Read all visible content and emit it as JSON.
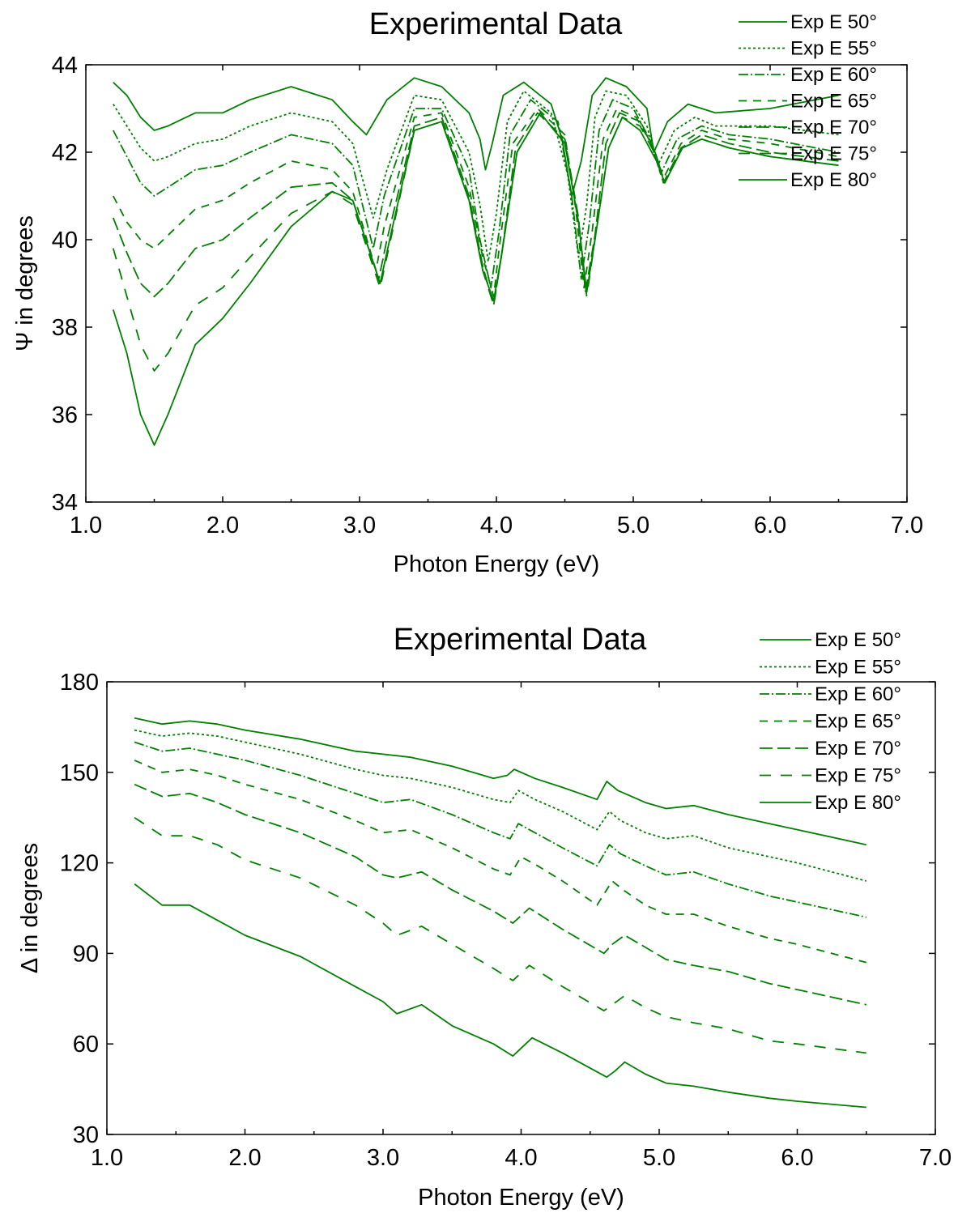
{
  "colors": {
    "series": "#008000",
    "axis": "#000000",
    "background": "#ffffff"
  },
  "chart_data": [
    {
      "type": "line",
      "title": "Experimental Data",
      "xlabel": "Photon Energy (eV)",
      "ylabel": "Ψ in degrees",
      "xlim": [
        1.0,
        7.0
      ],
      "ylim": [
        34,
        44
      ],
      "xticks": [
        "1.0",
        "2.0",
        "3.0",
        "4.0",
        "5.0",
        "6.0",
        "7.0"
      ],
      "yticks": [
        "34",
        "36",
        "38",
        "40",
        "42",
        "44"
      ],
      "grid": false,
      "legend_position": "top-right",
      "series": [
        {
          "name": "Exp E 50°",
          "dash": "solid",
          "x": [
            1.2,
            1.3,
            1.4,
            1.5,
            1.6,
            1.8,
            2.0,
            2.2,
            2.5,
            2.8,
            2.95,
            3.05,
            3.2,
            3.4,
            3.6,
            3.8,
            3.88,
            3.92,
            3.97,
            4.05,
            4.2,
            4.4,
            4.48,
            4.55,
            4.62,
            4.7,
            4.8,
            4.95,
            5.1,
            5.15,
            5.25,
            5.4,
            5.6,
            6.0,
            6.5
          ],
          "y": [
            43.6,
            43.3,
            42.8,
            42.5,
            42.6,
            42.9,
            42.9,
            43.2,
            43.5,
            43.2,
            42.7,
            42.4,
            43.2,
            43.7,
            43.5,
            42.9,
            42.3,
            41.6,
            42.2,
            43.3,
            43.6,
            43.1,
            42.3,
            41.0,
            41.8,
            43.3,
            43.7,
            43.5,
            43.0,
            42.0,
            42.7,
            43.1,
            42.9,
            43.0,
            43.3
          ]
        },
        {
          "name": "Exp E 55°",
          "dash": "3 3",
          "x": [
            1.2,
            1.3,
            1.4,
            1.5,
            1.6,
            1.8,
            2.0,
            2.2,
            2.5,
            2.8,
            2.95,
            3.1,
            3.2,
            3.4,
            3.6,
            3.8,
            3.88,
            3.94,
            4.0,
            4.08,
            4.2,
            4.4,
            4.52,
            4.6,
            4.66,
            4.72,
            4.8,
            4.95,
            5.1,
            5.18,
            5.3,
            5.45,
            5.6,
            6.0,
            6.5
          ],
          "y": [
            43.1,
            42.6,
            42.1,
            41.8,
            41.9,
            42.2,
            42.3,
            42.6,
            42.9,
            42.7,
            42.2,
            40.5,
            41.6,
            43.3,
            43.2,
            42.0,
            40.8,
            39.5,
            40.6,
            42.7,
            43.4,
            42.9,
            41.5,
            39.6,
            40.8,
            42.8,
            43.4,
            43.3,
            42.6,
            41.7,
            42.5,
            42.8,
            42.6,
            42.6,
            42.4
          ]
        },
        {
          "name": "Exp E 60°",
          "dash": "12 3 2 3",
          "x": [
            1.2,
            1.3,
            1.4,
            1.5,
            1.6,
            1.8,
            2.0,
            2.2,
            2.5,
            2.8,
            2.95,
            3.1,
            3.18,
            3.4,
            3.6,
            3.8,
            3.88,
            3.96,
            4.02,
            4.1,
            4.25,
            4.45,
            4.55,
            4.62,
            4.68,
            4.75,
            4.85,
            5.0,
            5.12,
            5.2,
            5.32,
            5.5,
            5.7,
            6.0,
            6.5
          ],
          "y": [
            42.5,
            41.9,
            41.3,
            41.0,
            41.2,
            41.6,
            41.7,
            42.0,
            42.4,
            42.2,
            41.7,
            39.8,
            41.0,
            43.0,
            43.0,
            41.6,
            40.0,
            38.9,
            40.2,
            42.4,
            43.2,
            42.7,
            41.0,
            39.1,
            40.4,
            42.5,
            43.2,
            43.0,
            42.3,
            41.5,
            42.3,
            42.6,
            42.4,
            42.3,
            42.0
          ]
        },
        {
          "name": "Exp E 65°",
          "dash": "10 8",
          "x": [
            1.2,
            1.3,
            1.4,
            1.5,
            1.6,
            1.8,
            2.0,
            2.2,
            2.5,
            2.8,
            2.95,
            3.12,
            3.18,
            3.4,
            3.6,
            3.8,
            3.9,
            3.98,
            4.02,
            4.12,
            4.3,
            4.5,
            4.58,
            4.64,
            4.7,
            4.78,
            4.88,
            5.02,
            5.15,
            5.22,
            5.35,
            5.5,
            5.7,
            6.0,
            6.5
          ],
          "y": [
            41.0,
            40.4,
            40.0,
            39.8,
            40.1,
            40.7,
            40.9,
            41.3,
            41.8,
            41.6,
            41.1,
            39.3,
            40.3,
            42.8,
            42.9,
            41.2,
            39.6,
            38.7,
            39.8,
            42.2,
            43.0,
            42.4,
            40.7,
            38.9,
            40.2,
            42.3,
            43.0,
            42.8,
            42.1,
            41.4,
            42.2,
            42.5,
            42.3,
            42.2,
            41.9
          ]
        },
        {
          "name": "Exp E 70°",
          "dash": "16 6",
          "x": [
            1.2,
            1.3,
            1.4,
            1.5,
            1.6,
            1.8,
            2.0,
            2.2,
            2.5,
            2.8,
            2.95,
            3.14,
            3.2,
            3.4,
            3.6,
            3.8,
            3.9,
            3.98,
            4.04,
            4.14,
            4.3,
            4.5,
            4.6,
            4.65,
            4.72,
            4.8,
            4.9,
            5.05,
            5.16,
            5.22,
            5.35,
            5.5,
            5.7,
            6.0,
            6.5
          ],
          "y": [
            40.5,
            39.7,
            39.0,
            38.7,
            39.0,
            39.8,
            40.0,
            40.5,
            41.2,
            41.3,
            40.9,
            39.1,
            40.0,
            42.6,
            42.8,
            41.0,
            39.4,
            38.5,
            39.7,
            42.1,
            42.9,
            42.3,
            40.5,
            38.8,
            40.1,
            42.2,
            42.9,
            42.7,
            42.0,
            41.3,
            42.1,
            42.4,
            42.2,
            42.0,
            41.8
          ]
        },
        {
          "name": "Exp E 75°",
          "dash": "14 12",
          "x": [
            1.2,
            1.3,
            1.4,
            1.5,
            1.6,
            1.8,
            2.0,
            2.2,
            2.5,
            2.8,
            2.95,
            3.15,
            3.22,
            3.4,
            3.6,
            3.8,
            3.9,
            3.98,
            4.04,
            4.15,
            4.32,
            4.5,
            4.6,
            4.66,
            4.72,
            4.82,
            4.92,
            5.05,
            5.17,
            5.23,
            5.36,
            5.5,
            5.7,
            6.0,
            6.5
          ],
          "y": [
            39.8,
            38.7,
            37.6,
            37.0,
            37.4,
            38.5,
            38.9,
            39.6,
            40.6,
            41.1,
            40.8,
            38.9,
            39.9,
            42.5,
            42.7,
            40.9,
            39.3,
            38.5,
            39.7,
            42.0,
            42.9,
            42.2,
            40.4,
            38.7,
            40.0,
            42.1,
            42.8,
            42.6,
            41.9,
            41.3,
            42.1,
            42.3,
            42.1,
            41.9,
            41.7
          ]
        },
        {
          "name": "Exp E 80°",
          "dash": "solid",
          "x": [
            1.2,
            1.3,
            1.4,
            1.5,
            1.6,
            1.8,
            2.0,
            2.2,
            2.5,
            2.8,
            2.95,
            3.15,
            3.22,
            3.4,
            3.6,
            3.8,
            3.9,
            3.98,
            4.04,
            4.15,
            4.32,
            4.5,
            4.6,
            4.66,
            4.72,
            4.82,
            4.92,
            5.05,
            5.17,
            5.23,
            5.36,
            5.5,
            5.7,
            6.0,
            6.5
          ],
          "y": [
            38.4,
            37.4,
            36.0,
            35.3,
            36.0,
            37.6,
            38.2,
            39.0,
            40.3,
            41.1,
            40.9,
            39.0,
            40.0,
            42.5,
            42.7,
            40.9,
            39.3,
            38.6,
            39.7,
            42.0,
            42.9,
            42.2,
            40.4,
            38.8,
            40.0,
            42.1,
            42.8,
            42.5,
            41.8,
            41.3,
            42.1,
            42.3,
            42.1,
            41.9,
            41.7
          ]
        }
      ]
    },
    {
      "type": "line",
      "title": "Experimental Data",
      "xlabel": "Photon Energy (eV)",
      "ylabel": "Δ in degrees",
      "xlim": [
        1.0,
        7.0
      ],
      "ylim": [
        30,
        180
      ],
      "xticks": [
        "1.0",
        "2.0",
        "3.0",
        "4.0",
        "5.0",
        "6.0",
        "7.0"
      ],
      "yticks": [
        "30",
        "60",
        "90",
        "120",
        "150",
        "180"
      ],
      "grid": false,
      "legend_position": "top-right",
      "series": [
        {
          "name": "Exp E 50°",
          "dash": "solid",
          "x": [
            1.2,
            1.4,
            1.6,
            1.8,
            2.0,
            2.4,
            2.8,
            3.0,
            3.2,
            3.5,
            3.8,
            3.9,
            3.95,
            4.1,
            4.3,
            4.55,
            4.62,
            4.7,
            4.9,
            5.05,
            5.25,
            5.5,
            5.8,
            6.0,
            6.5
          ],
          "y": [
            168,
            166,
            167,
            166,
            164,
            161,
            157,
            156,
            155,
            152,
            148,
            149,
            151,
            148,
            145,
            141,
            147,
            144,
            140,
            138,
            139,
            136,
            133,
            131,
            126
          ]
        },
        {
          "name": "Exp E 55°",
          "dash": "3 3",
          "x": [
            1.2,
            1.4,
            1.6,
            1.8,
            2.0,
            2.4,
            2.8,
            3.0,
            3.2,
            3.5,
            3.8,
            3.92,
            3.98,
            4.1,
            4.3,
            4.55,
            4.64,
            4.72,
            4.9,
            5.05,
            5.25,
            5.5,
            5.8,
            6.0,
            6.5
          ],
          "y": [
            164,
            162,
            163,
            162,
            160,
            156,
            151,
            149,
            148,
            145,
            141,
            140,
            144,
            141,
            137,
            131,
            137,
            134,
            130,
            128,
            129,
            125,
            122,
            120,
            114
          ]
        },
        {
          "name": "Exp E 60°",
          "dash": "12 3 2 3",
          "x": [
            1.2,
            1.4,
            1.6,
            1.8,
            2.0,
            2.4,
            2.8,
            3.0,
            3.2,
            3.5,
            3.8,
            3.92,
            3.98,
            4.1,
            4.3,
            4.55,
            4.64,
            4.72,
            4.9,
            5.05,
            5.25,
            5.5,
            5.8,
            6.0,
            6.5
          ],
          "y": [
            160,
            157,
            158,
            156,
            154,
            149,
            143,
            140,
            141,
            136,
            130,
            128,
            133,
            130,
            125,
            119,
            126,
            123,
            119,
            116,
            117,
            113,
            109,
            107,
            102
          ]
        },
        {
          "name": "Exp E 65°",
          "dash": "10 8",
          "x": [
            1.2,
            1.4,
            1.6,
            1.8,
            2.0,
            2.4,
            2.8,
            3.0,
            3.2,
            3.5,
            3.8,
            3.92,
            4.0,
            4.12,
            4.3,
            4.55,
            4.66,
            4.74,
            4.9,
            5.05,
            5.25,
            5.5,
            5.8,
            6.0,
            6.5
          ],
          "y": [
            154,
            150,
            151,
            149,
            146,
            141,
            134,
            130,
            131,
            125,
            118,
            116,
            122,
            119,
            114,
            106,
            114,
            111,
            106,
            103,
            103,
            99,
            95,
            93,
            87
          ]
        },
        {
          "name": "Exp E 70°",
          "dash": "16 6",
          "x": [
            1.2,
            1.4,
            1.6,
            1.8,
            2.0,
            2.4,
            2.8,
            3.0,
            3.1,
            3.28,
            3.5,
            3.8,
            3.94,
            4.06,
            4.3,
            4.6,
            4.66,
            4.75,
            4.9,
            5.05,
            5.25,
            5.5,
            5.8,
            6.0,
            6.5
          ],
          "y": [
            146,
            142,
            143,
            140,
            136,
            130,
            122,
            116,
            115,
            117,
            111,
            104,
            100,
            105,
            98,
            90,
            93,
            96,
            92,
            88,
            86,
            84,
            80,
            78,
            73
          ]
        },
        {
          "name": "Exp E 75°",
          "dash": "14 12",
          "x": [
            1.2,
            1.4,
            1.6,
            1.8,
            2.0,
            2.4,
            2.8,
            3.0,
            3.1,
            3.28,
            3.5,
            3.8,
            3.94,
            4.06,
            4.3,
            4.6,
            4.66,
            4.75,
            4.9,
            5.05,
            5.25,
            5.5,
            5.8,
            6.0,
            6.5
          ],
          "y": [
            135,
            129,
            129,
            126,
            121,
            115,
            106,
            100,
            96,
            99,
            93,
            85,
            81,
            86,
            79,
            71,
            73,
            76,
            72,
            69,
            67,
            65,
            61,
            60,
            57
          ]
        },
        {
          "name": "Exp E 80°",
          "dash": "solid",
          "x": [
            1.2,
            1.4,
            1.6,
            1.8,
            2.0,
            2.4,
            2.8,
            3.0,
            3.1,
            3.28,
            3.5,
            3.8,
            3.94,
            4.08,
            4.3,
            4.62,
            4.68,
            4.75,
            4.9,
            5.05,
            5.25,
            5.5,
            5.8,
            6.0,
            6.5
          ],
          "y": [
            113,
            106,
            106,
            101,
            96,
            89,
            79,
            74,
            70,
            73,
            66,
            60,
            56,
            62,
            57,
            49,
            51,
            54,
            50,
            47,
            46,
            44,
            42,
            41,
            39
          ]
        }
      ]
    }
  ]
}
